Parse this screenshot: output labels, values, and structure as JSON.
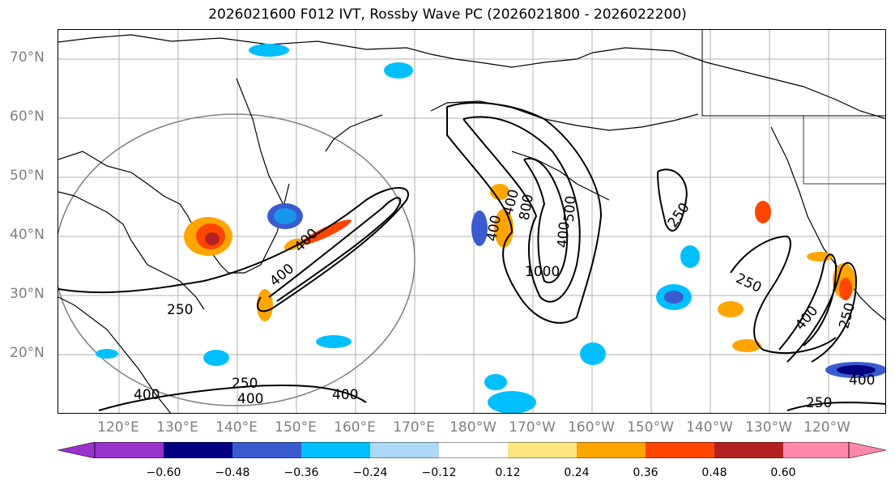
{
  "title": "2026021600 F012 IVT, Rossby Wave PC (2026021800 - 2026022200)",
  "lat_labels": [
    "70°N",
    "60°N",
    "50°N",
    "40°N",
    "30°N",
    "20°N"
  ],
  "lon_labels": [
    "120°E",
    "130°E",
    "140°E",
    "150°E",
    "160°E",
    "170°E",
    "180°W",
    "170°W",
    "160°W",
    "150°W",
    "140°W",
    "130°W",
    "120°W"
  ],
  "contour_labels": [
    "250",
    "250",
    "250",
    "250",
    "250",
    "250",
    "400",
    "400",
    "400",
    "400",
    "400",
    "400",
    "400",
    "1000",
    "400",
    "500",
    "400",
    "400",
    "800"
  ],
  "colorbar": {
    "colors": [
      "#9932cc",
      "#000080",
      "#3a5bd0",
      "#00bfff",
      "#add8f7",
      "#ffffff",
      "#ffe680",
      "#ffa500",
      "#ff4500",
      "#b22222",
      "#ff88aa"
    ],
    "ticks": [
      "−0.60",
      "−0.48",
      "−0.36",
      "−0.24",
      "−0.12",
      "0.12",
      "0.24",
      "0.36",
      "0.48",
      "0.60"
    ]
  }
}
